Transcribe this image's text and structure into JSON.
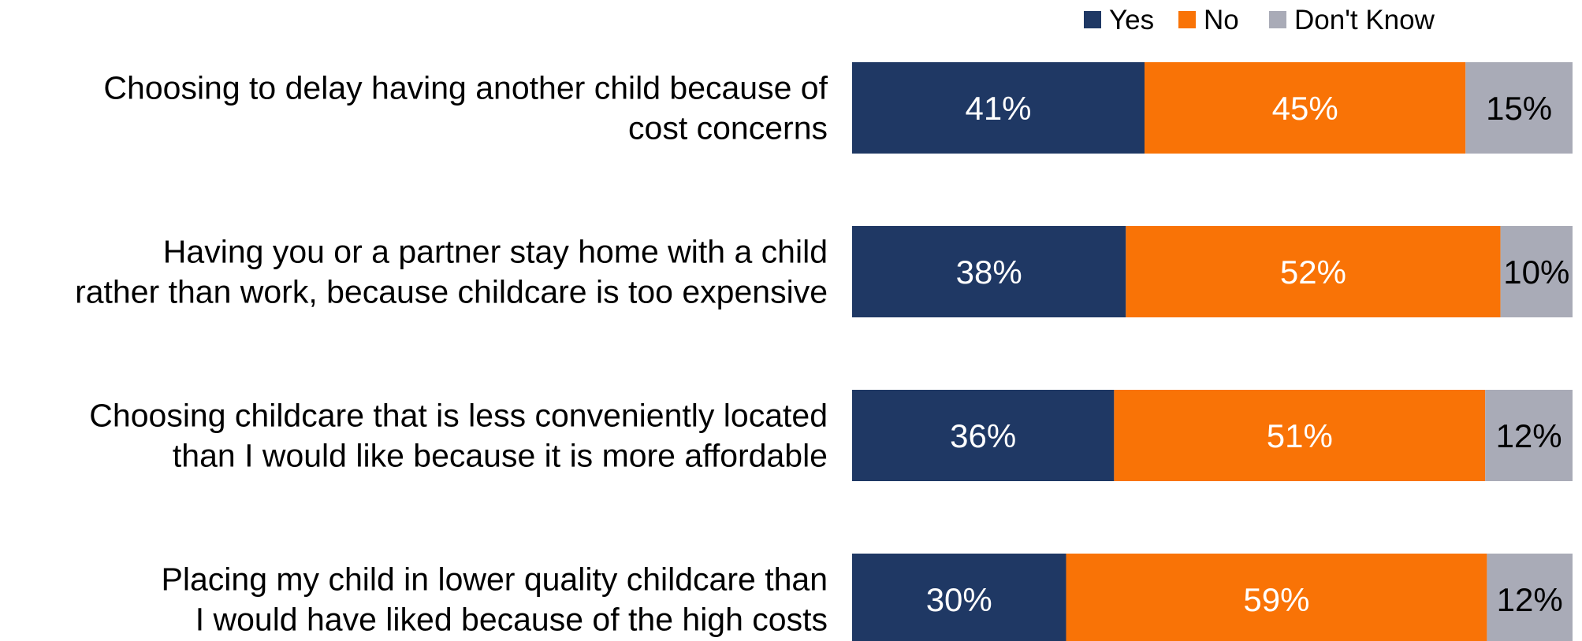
{
  "chart_data": {
    "type": "bar",
    "orientation": "horizontal",
    "stacked": true,
    "categories": [
      [
        "Choosing to delay having another child because of",
        "cost concerns"
      ],
      [
        "Having you or a partner stay home with a child",
        "rather than work, because childcare is too expensive"
      ],
      [
        "Choosing childcare that is less conveniently located",
        "than I would like because it is more affordable"
      ],
      [
        "Placing my child in lower quality childcare than",
        "I would have liked because of the high costs"
      ]
    ],
    "series": [
      {
        "name": "Yes",
        "color": "#1f3864",
        "label_color": "#ffffff",
        "values": [
          41,
          38,
          36,
          30
        ],
        "labels": [
          "41%",
          "38%",
          "36%",
          "30%"
        ]
      },
      {
        "name": "No",
        "color": "#f97306",
        "label_color": "#ffffff",
        "values": [
          45,
          52,
          51,
          59
        ],
        "labels": [
          "45%",
          "52%",
          "51%",
          "59%"
        ]
      },
      {
        "name": "Don't Know",
        "color": "#a9abb7",
        "label_color": "#000000",
        "values": [
          15,
          10,
          12,
          12
        ],
        "labels": [
          "15%",
          "10%",
          "12%",
          "12%"
        ]
      }
    ],
    "legend_position": "top-right",
    "grid": false
  }
}
